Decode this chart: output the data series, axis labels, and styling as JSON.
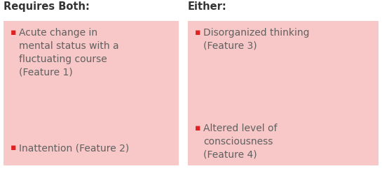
{
  "background_color": "#ffffff",
  "box_fill_color": "#f8c8c8",
  "box_edge_color": "#f8c8c8",
  "bullet_color": "#dd2222",
  "header_color": "#333333",
  "text_color": "#606060",
  "left_header": "Requires Both:",
  "right_header": "Either:",
  "left_bullets": [
    "Acute change in\nmental status with a\nfluctuating course\n(Feature 1)",
    "Inattention (Feature 2)"
  ],
  "right_bullets": [
    "Disorganized thinking\n(Feature 3)",
    "Altered level of\nconsciousness\n(Feature 4)"
  ],
  "header_fontsize": 10.5,
  "bullet_fontsize": 10,
  "fig_width": 5.45,
  "fig_height": 2.45,
  "dpi": 100
}
